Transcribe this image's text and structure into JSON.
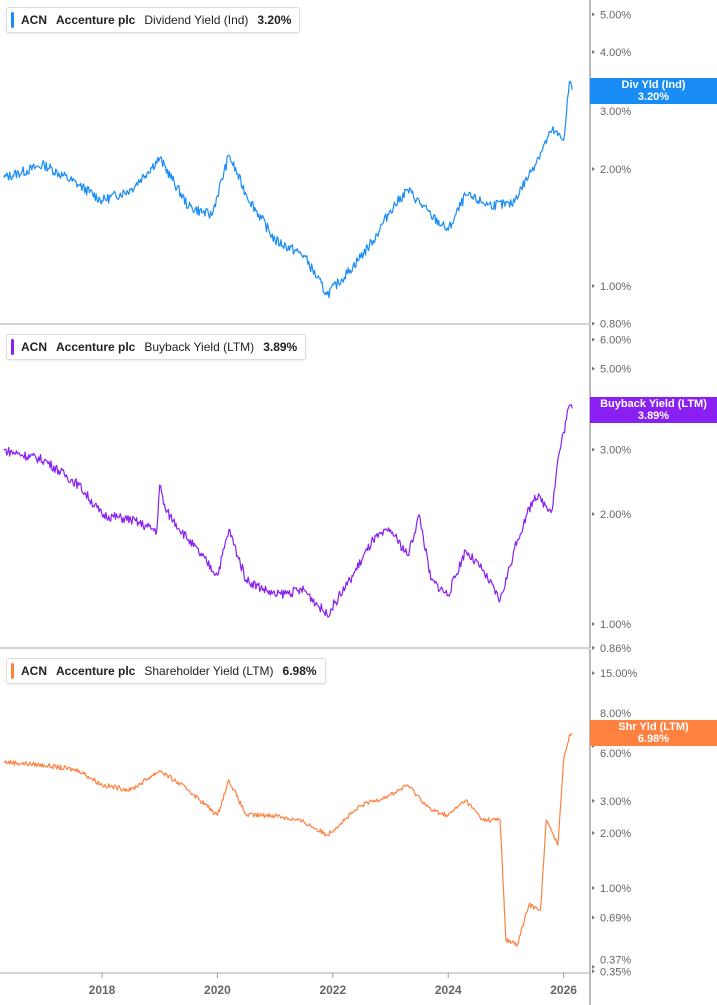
{
  "chart_data": [
    {
      "type": "line",
      "ticker": "ACN",
      "company": "Accenture plc",
      "metric": "Dividend Yield (Ind)",
      "last_value": "3.20%",
      "tag_label": "Div Yld (Ind)",
      "color": "#1a8cf5",
      "yscale": "log",
      "ylim": [
        0.8,
        5.5
      ],
      "yticks": [
        "5.00%",
        "4.00%",
        "3.00%",
        "2.00%",
        "1.00%",
        "0.80%"
      ],
      "ytick_values": [
        5,
        4,
        3,
        2,
        1,
        0.8
      ],
      "x": [
        2016.3,
        2017.0,
        2017.6,
        2018.0,
        2018.5,
        2019.0,
        2019.5,
        2019.9,
        2020.2,
        2020.5,
        2021.0,
        2021.5,
        2021.9,
        2022.3,
        2022.7,
        2023.0,
        2023.3,
        2023.7,
        2024.0,
        2024.3,
        2024.7,
        2025.1,
        2025.4,
        2025.8,
        2026.0,
        2026.1,
        2026.15
      ],
      "values": [
        1.9,
        2.05,
        1.82,
        1.66,
        1.77,
        2.13,
        1.6,
        1.52,
        2.17,
        1.72,
        1.31,
        1.2,
        0.95,
        1.1,
        1.31,
        1.57,
        1.77,
        1.52,
        1.39,
        1.71,
        1.62,
        1.62,
        1.93,
        2.52,
        2.37,
        3.35,
        3.2
      ]
    },
    {
      "type": "line",
      "ticker": "ACN",
      "company": "Accenture plc",
      "metric": "Buyback Yield (LTM)",
      "last_value": "3.89%",
      "tag_label": "Buyback Yield (LTM)",
      "color": "#8a1ff2",
      "yscale": "log",
      "ylim": [
        0.86,
        6.3
      ],
      "yticks": [
        "6.00%",
        "5.00%",
        "3.00%",
        "2.00%",
        "1.00%",
        "0.86%"
      ],
      "ytick_values": [
        6,
        5,
        3,
        2,
        1,
        0.86
      ],
      "x": [
        2016.3,
        2017.0,
        2017.6,
        2018.0,
        2018.5,
        2018.95,
        2019.0,
        2019.1,
        2019.5,
        2020.0,
        2020.2,
        2020.5,
        2021.0,
        2021.5,
        2021.9,
        2022.3,
        2022.7,
        2023.0,
        2023.3,
        2023.5,
        2023.7,
        2024.0,
        2024.3,
        2024.6,
        2024.9,
        2025.2,
        2025.5,
        2025.8,
        2025.9,
        2026.1,
        2026.15
      ],
      "values": [
        2.99,
        2.81,
        2.4,
        1.99,
        1.93,
        1.8,
        2.4,
        2.05,
        1.7,
        1.36,
        1.81,
        1.32,
        1.2,
        1.24,
        1.06,
        1.32,
        1.7,
        1.81,
        1.54,
        1.99,
        1.32,
        1.2,
        1.59,
        1.4,
        1.16,
        1.7,
        2.25,
        2.05,
        2.81,
        3.97,
        3.89
      ]
    },
    {
      "type": "line",
      "ticker": "ACN",
      "company": "Accenture plc",
      "metric": "Shareholder Yield (LTM)",
      "last_value": "6.98%",
      "tag_label": "Shr Yld (LTM)",
      "color": "#ff8140",
      "yscale": "log",
      "ylim": [
        0.35,
        16
      ],
      "yticks": [
        "15.00%",
        "8.00%",
        "6.00%",
        "3.00%",
        "2.00%",
        "1.00%",
        "0.69%",
        "0.37%",
        "0.35%"
      ],
      "ytick_values": [
        15,
        8,
        6,
        3,
        2,
        1,
        0.69,
        0.37,
        0.35
      ],
      "x": [
        2016.3,
        2017.0,
        2017.6,
        2018.0,
        2018.5,
        2019.0,
        2019.5,
        2020.0,
        2020.2,
        2020.5,
        2021.0,
        2021.5,
        2021.9,
        2022.5,
        2023.0,
        2023.3,
        2023.7,
        2024.0,
        2024.3,
        2024.6,
        2024.9,
        2025.0,
        2025.2,
        2025.4,
        2025.6,
        2025.7,
        2025.9,
        2026.0,
        2026.1,
        2026.15
      ],
      "values": [
        4.9,
        4.7,
        4.4,
        3.66,
        3.44,
        4.4,
        3.44,
        2.5,
        3.9,
        2.5,
        2.5,
        2.3,
        1.95,
        2.84,
        3.23,
        3.66,
        2.67,
        2.5,
        3.03,
        2.36,
        2.36,
        0.52,
        0.49,
        0.81,
        0.76,
        2.36,
        1.72,
        5.0,
        6.9,
        6.98
      ]
    }
  ],
  "x_axis": {
    "ticks": [
      "2018",
      "2020",
      "2022",
      "2024",
      "2026"
    ],
    "tick_values": [
      2018,
      2020,
      2022,
      2024,
      2026
    ]
  }
}
